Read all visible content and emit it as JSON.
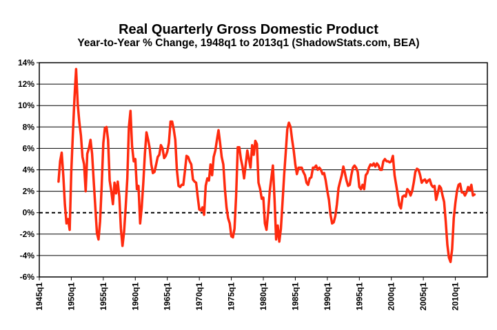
{
  "chart_data": {
    "type": "line",
    "title": "Real Quarterly Gross Domestic Product",
    "subtitle": "Year-to-Year % Change, 1948q1 to 2013q1 (ShadowStats.com, BEA)",
    "xlabel": "",
    "ylabel": "",
    "x_range": [
      1945.0,
      2015.0
    ],
    "ylim": [
      -6,
      14
    ],
    "y_ticks": [
      -6,
      -4,
      -2,
      0,
      2,
      4,
      6,
      8,
      10,
      12,
      14
    ],
    "y_tick_labels": [
      "-6%",
      "-4%",
      "-2%",
      "0%",
      "2%",
      "4%",
      "6%",
      "8%",
      "10%",
      "12%",
      "14%"
    ],
    "x_ticks": [
      1945,
      1950,
      1955,
      1960,
      1965,
      1970,
      1975,
      1980,
      1985,
      1990,
      1995,
      2000,
      2005,
      2010
    ],
    "x_tick_labels": [
      "1945q1",
      "1950q1",
      "1955q1",
      "1960q1",
      "1965q1",
      "1970q1",
      "1975q1",
      "1980q1",
      "1985q1",
      "1990q1",
      "1995q1",
      "2000q1",
      "2005q1",
      "2010q1"
    ],
    "grid": "horizontal",
    "zero_line": "dashed",
    "line_color": "#ff2a0e",
    "series": [
      {
        "values": [
          [
            1948.0,
            2.9
          ],
          [
            1948.25,
            4.8
          ],
          [
            1948.5,
            5.6
          ],
          [
            1948.75,
            3.5
          ],
          [
            1949.0,
            0.8
          ],
          [
            1949.25,
            -1.0
          ],
          [
            1949.5,
            -0.6
          ],
          [
            1949.75,
            -1.6
          ],
          [
            1950.0,
            3.8
          ],
          [
            1950.25,
            7.5
          ],
          [
            1950.5,
            10.8
          ],
          [
            1950.75,
            13.4
          ],
          [
            1951.0,
            10.2
          ],
          [
            1951.25,
            8.5
          ],
          [
            1951.5,
            7.2
          ],
          [
            1951.75,
            5.2
          ],
          [
            1952.0,
            4.5
          ],
          [
            1952.25,
            2.0
          ],
          [
            1952.5,
            5.5
          ],
          [
            1952.75,
            6.0
          ],
          [
            1953.0,
            6.8
          ],
          [
            1953.25,
            5.5
          ],
          [
            1953.5,
            3.0
          ],
          [
            1953.75,
            0.5
          ],
          [
            1954.0,
            -1.9
          ],
          [
            1954.25,
            -2.5
          ],
          [
            1954.5,
            -0.8
          ],
          [
            1954.75,
            2.5
          ],
          [
            1955.0,
            6.5
          ],
          [
            1955.25,
            7.9
          ],
          [
            1955.5,
            8.0
          ],
          [
            1955.75,
            6.8
          ],
          [
            1956.0,
            3.0
          ],
          [
            1956.25,
            2.0
          ],
          [
            1956.5,
            0.8
          ],
          [
            1956.75,
            2.8
          ],
          [
            1957.0,
            1.8
          ],
          [
            1957.25,
            2.9
          ],
          [
            1957.5,
            1.5
          ],
          [
            1957.75,
            -1.5
          ],
          [
            1958.0,
            -3.1
          ],
          [
            1958.25,
            -1.8
          ],
          [
            1958.5,
            0.6
          ],
          [
            1958.75,
            3.2
          ],
          [
            1959.0,
            8.0
          ],
          [
            1959.25,
            9.5
          ],
          [
            1959.5,
            6.2
          ],
          [
            1959.75,
            4.8
          ],
          [
            1960.0,
            5.0
          ],
          [
            1960.25,
            2.2
          ],
          [
            1960.5,
            2.5
          ],
          [
            1960.75,
            -1.0
          ],
          [
            1961.0,
            0.5
          ],
          [
            1961.25,
            2.8
          ],
          [
            1961.5,
            5.5
          ],
          [
            1961.75,
            7.5
          ],
          [
            1962.0,
            6.8
          ],
          [
            1962.25,
            6.0
          ],
          [
            1962.5,
            4.5
          ],
          [
            1962.75,
            3.7
          ],
          [
            1963.0,
            3.8
          ],
          [
            1963.25,
            4.5
          ],
          [
            1963.5,
            5.2
          ],
          [
            1963.75,
            5.4
          ],
          [
            1964.0,
            6.3
          ],
          [
            1964.25,
            6.0
          ],
          [
            1964.5,
            5.1
          ],
          [
            1964.75,
            5.3
          ],
          [
            1965.0,
            5.7
          ],
          [
            1965.25,
            6.5
          ],
          [
            1965.5,
            8.5
          ],
          [
            1965.75,
            8.5
          ],
          [
            1966.0,
            7.8
          ],
          [
            1966.25,
            6.8
          ],
          [
            1966.5,
            4.0
          ],
          [
            1966.75,
            2.5
          ],
          [
            1967.0,
            2.4
          ],
          [
            1967.25,
            2.6
          ],
          [
            1967.5,
            2.6
          ],
          [
            1967.75,
            3.9
          ],
          [
            1968.0,
            5.3
          ],
          [
            1968.25,
            5.2
          ],
          [
            1968.5,
            4.8
          ],
          [
            1968.75,
            4.5
          ],
          [
            1969.0,
            3.1
          ],
          [
            1969.25,
            2.9
          ],
          [
            1969.5,
            2.8
          ],
          [
            1969.75,
            1.5
          ],
          [
            1970.0,
            0.3
          ],
          [
            1970.25,
            0.2
          ],
          [
            1970.5,
            0.5
          ],
          [
            1970.75,
            -0.2
          ],
          [
            1971.0,
            2.5
          ],
          [
            1971.25,
            3.2
          ],
          [
            1971.5,
            3.0
          ],
          [
            1971.75,
            4.5
          ],
          [
            1972.0,
            3.5
          ],
          [
            1972.25,
            5.2
          ],
          [
            1972.5,
            5.8
          ],
          [
            1972.75,
            6.8
          ],
          [
            1973.0,
            7.7
          ],
          [
            1973.25,
            6.5
          ],
          [
            1973.5,
            5.2
          ],
          [
            1973.75,
            4.5
          ],
          [
            1974.0,
            2.2
          ],
          [
            1974.25,
            0.5
          ],
          [
            1974.5,
            -0.5
          ],
          [
            1974.75,
            -1.0
          ],
          [
            1975.0,
            -2.2
          ],
          [
            1975.25,
            -2.3
          ],
          [
            1975.5,
            -1.5
          ],
          [
            1975.75,
            1.5
          ],
          [
            1976.0,
            6.1
          ],
          [
            1976.25,
            6.1
          ],
          [
            1976.5,
            5.0
          ],
          [
            1976.75,
            4.3
          ],
          [
            1977.0,
            3.2
          ],
          [
            1977.25,
            4.5
          ],
          [
            1977.5,
            5.8
          ],
          [
            1977.75,
            5.0
          ],
          [
            1978.0,
            4.2
          ],
          [
            1978.25,
            6.3
          ],
          [
            1978.5,
            5.4
          ],
          [
            1978.75,
            6.7
          ],
          [
            1979.0,
            6.4
          ],
          [
            1979.25,
            2.8
          ],
          [
            1979.5,
            2.2
          ],
          [
            1979.75,
            1.3
          ],
          [
            1980.0,
            1.4
          ],
          [
            1980.25,
            -1.0
          ],
          [
            1980.5,
            -1.6
          ],
          [
            1980.75,
            0.0
          ],
          [
            1981.0,
            2.0
          ],
          [
            1981.25,
            3.2
          ],
          [
            1981.5,
            4.4
          ],
          [
            1981.75,
            1.2
          ],
          [
            1982.0,
            -2.5
          ],
          [
            1982.25,
            -1.2
          ],
          [
            1982.5,
            -2.7
          ],
          [
            1982.75,
            -1.5
          ],
          [
            1983.0,
            1.0
          ],
          [
            1983.25,
            3.5
          ],
          [
            1983.5,
            5.6
          ],
          [
            1983.75,
            7.8
          ],
          [
            1984.0,
            8.4
          ],
          [
            1984.25,
            8.0
          ],
          [
            1984.5,
            6.8
          ],
          [
            1984.75,
            5.8
          ],
          [
            1985.0,
            4.5
          ],
          [
            1985.25,
            3.6
          ],
          [
            1985.5,
            4.2
          ],
          [
            1985.75,
            4.2
          ],
          [
            1986.0,
            4.2
          ],
          [
            1986.25,
            3.8
          ],
          [
            1986.5,
            3.5
          ],
          [
            1986.75,
            2.8
          ],
          [
            1987.0,
            2.6
          ],
          [
            1987.25,
            3.2
          ],
          [
            1987.5,
            3.3
          ],
          [
            1987.75,
            4.2
          ],
          [
            1988.0,
            4.2
          ],
          [
            1988.25,
            4.4
          ],
          [
            1988.5,
            4.0
          ],
          [
            1988.75,
            4.2
          ],
          [
            1989.0,
            4.0
          ],
          [
            1989.25,
            3.6
          ],
          [
            1989.5,
            3.7
          ],
          [
            1989.75,
            3.0
          ],
          [
            1990.0,
            2.0
          ],
          [
            1990.25,
            1.2
          ],
          [
            1990.5,
            -0.2
          ],
          [
            1990.75,
            -1.0
          ],
          [
            1991.0,
            -0.9
          ],
          [
            1991.25,
            -0.3
          ],
          [
            1991.5,
            0.8
          ],
          [
            1991.75,
            2.3
          ],
          [
            1992.0,
            2.9
          ],
          [
            1992.25,
            3.5
          ],
          [
            1992.5,
            4.3
          ],
          [
            1992.75,
            3.7
          ],
          [
            1993.0,
            3.0
          ],
          [
            1993.25,
            2.5
          ],
          [
            1993.5,
            2.6
          ],
          [
            1993.75,
            3.5
          ],
          [
            1994.0,
            4.2
          ],
          [
            1994.25,
            4.4
          ],
          [
            1994.5,
            4.2
          ],
          [
            1994.75,
            3.8
          ],
          [
            1995.0,
            2.4
          ],
          [
            1995.25,
            2.2
          ],
          [
            1995.5,
            2.6
          ],
          [
            1995.75,
            2.2
          ],
          [
            1996.0,
            3.5
          ],
          [
            1996.25,
            3.7
          ],
          [
            1996.5,
            4.2
          ],
          [
            1996.75,
            4.5
          ],
          [
            1997.0,
            4.4
          ],
          [
            1997.25,
            4.6
          ],
          [
            1997.5,
            4.3
          ],
          [
            1997.75,
            4.6
          ],
          [
            1998.0,
            4.4
          ],
          [
            1998.25,
            4.0
          ],
          [
            1998.5,
            4.0
          ],
          [
            1998.75,
            4.8
          ],
          [
            1999.0,
            5.0
          ],
          [
            1999.25,
            4.8
          ],
          [
            1999.5,
            4.8
          ],
          [
            1999.75,
            4.7
          ],
          [
            2000.0,
            4.8
          ],
          [
            2000.25,
            5.3
          ],
          [
            2000.5,
            3.5
          ],
          [
            2000.75,
            2.6
          ],
          [
            2001.0,
            1.7
          ],
          [
            2001.25,
            0.7
          ],
          [
            2001.5,
            0.4
          ],
          [
            2001.75,
            1.5
          ],
          [
            2002.0,
            1.6
          ],
          [
            2002.25,
            1.5
          ],
          [
            2002.5,
            2.2
          ],
          [
            2002.75,
            2.0
          ],
          [
            2003.0,
            1.6
          ],
          [
            2003.25,
            2.0
          ],
          [
            2003.5,
            2.8
          ],
          [
            2003.75,
            3.8
          ],
          [
            2004.0,
            4.1
          ],
          [
            2004.25,
            4.0
          ],
          [
            2004.5,
            3.5
          ],
          [
            2004.75,
            2.8
          ],
          [
            2005.0,
            3.0
          ],
          [
            2005.25,
            3.1
          ],
          [
            2005.5,
            2.8
          ],
          [
            2005.75,
            3.0
          ],
          [
            2006.0,
            3.1
          ],
          [
            2006.25,
            2.6
          ],
          [
            2006.5,
            2.4
          ],
          [
            2006.75,
            2.5
          ],
          [
            2007.0,
            1.2
          ],
          [
            2007.25,
            1.8
          ],
          [
            2007.5,
            2.5
          ],
          [
            2007.75,
            2.3
          ],
          [
            2008.0,
            1.6
          ],
          [
            2008.25,
            1.0
          ],
          [
            2008.5,
            -0.8
          ],
          [
            2008.75,
            -3.0
          ],
          [
            2009.0,
            -4.2
          ],
          [
            2009.25,
            -4.6
          ],
          [
            2009.5,
            -3.4
          ],
          [
            2009.75,
            -0.5
          ],
          [
            2010.0,
            0.9
          ],
          [
            2010.25,
            2.0
          ],
          [
            2010.5,
            2.6
          ],
          [
            2010.75,
            2.7
          ],
          [
            2011.0,
            1.9
          ],
          [
            2011.25,
            1.9
          ],
          [
            2011.5,
            1.6
          ],
          [
            2011.75,
            1.9
          ],
          [
            2012.0,
            2.4
          ],
          [
            2012.25,
            2.1
          ],
          [
            2012.5,
            2.6
          ],
          [
            2012.75,
            1.6
          ],
          [
            2013.0,
            1.7
          ]
        ]
      }
    ]
  }
}
